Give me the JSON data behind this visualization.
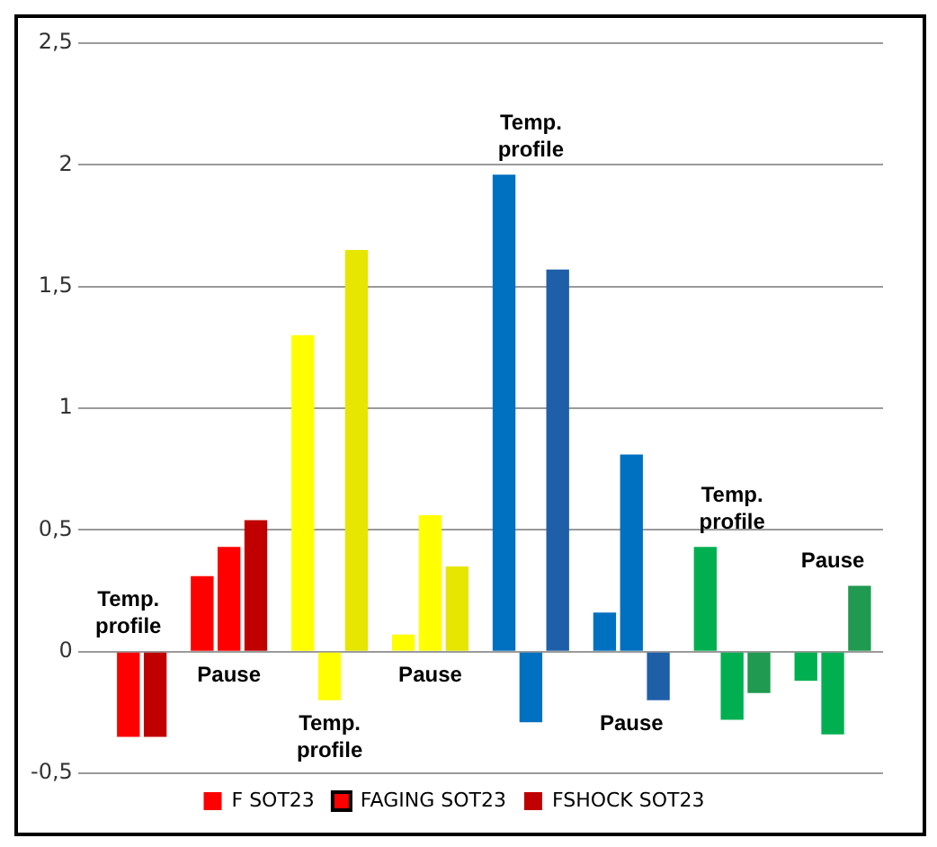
{
  "chart_data": {
    "type": "bar",
    "categories": [
      null,
      null,
      null,
      null,
      null,
      null,
      null,
      null
    ],
    "series": [
      {
        "name": "F SOT23",
        "color": "#ff0000",
        "colors": [
          "#ff0000",
          "#ff0000",
          "#ffff00",
          "#ffff00",
          "#0070c0",
          "#0070c0",
          "#00b050",
          "#00b050"
        ],
        "values": [
          0,
          0.31,
          1.3,
          0.07,
          1.96,
          0.16,
          0.43,
          -0.12
        ]
      },
      {
        "name": "FAGING SOT23",
        "color": "#ff0000",
        "colors": [
          "#ff0000",
          "#ff0000",
          "#ffff00",
          "#ffff00",
          "#0070c0",
          "#0070c0",
          "#00b050",
          "#00b050"
        ],
        "values": [
          -0.35,
          0.43,
          -0.2,
          0.56,
          -0.29,
          0.81,
          -0.28,
          -0.34
        ]
      },
      {
        "name": "FSHOCK SOT23",
        "color": "#c00000",
        "colors": [
          "#c00000",
          "#c00000",
          "#e6e600",
          "#e6e600",
          "#1f5fa8",
          "#1f5fa8",
          "#1f9a50",
          "#1f9a50"
        ],
        "values": [
          -0.35,
          0.54,
          1.65,
          0.35,
          1.57,
          -0.2,
          -0.17,
          0.27
        ]
      }
    ],
    "ylim": [
      -0.5,
      2.5
    ],
    "yticks": [
      {
        "value": -0.5,
        "label": "-0,5"
      },
      {
        "value": 0,
        "label": "0"
      },
      {
        "value": 0.5,
        "label": "0,5"
      },
      {
        "value": 1,
        "label": "1"
      },
      {
        "value": 1.5,
        "label": "1,5"
      },
      {
        "value": 2,
        "label": "2"
      },
      {
        "value": 2.5,
        "label": "2,5"
      }
    ],
    "grid": "y",
    "legend": "bottom",
    "annotations": [
      "Temp. profile",
      "Pause",
      "Temp. profile",
      "Pause",
      "Temp. profile",
      "Pause",
      "Temp. profile",
      "Pause"
    ]
  }
}
